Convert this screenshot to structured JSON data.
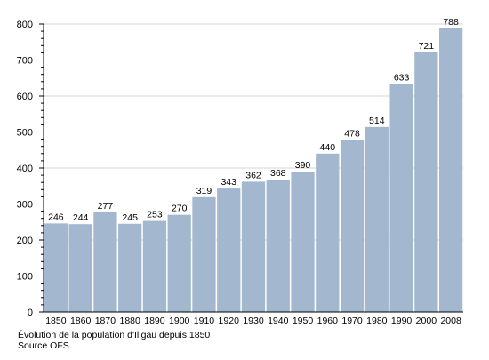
{
  "chart_data": {
    "type": "bar",
    "categories": [
      "1850",
      "1860",
      "1870",
      "1880",
      "1890",
      "1900",
      "1910",
      "1920",
      "1930",
      "1940",
      "1950",
      "1960",
      "1970",
      "1980",
      "1990",
      "2000",
      "2008"
    ],
    "values": [
      246,
      244,
      277,
      245,
      253,
      270,
      319,
      343,
      362,
      368,
      390,
      440,
      478,
      514,
      633,
      721,
      788
    ],
    "data_labels": [
      "246",
      "244",
      "277",
      "245",
      "253",
      "270",
      "319",
      "343",
      "362",
      "368",
      "390",
      "440",
      "478",
      "514",
      "633",
      "721",
      "788"
    ],
    "yticks": [
      "0",
      "100",
      "200",
      "300",
      "400",
      "500",
      "600",
      "700",
      "800"
    ],
    "ylim": [
      0,
      800
    ],
    "grid": true,
    "legend": "none",
    "colors": {
      "bar": "#a3b8cf",
      "grid": "#d4d4d4",
      "axis": "#000000"
    }
  },
  "caption": {
    "line1": "Évolution de la population d'Illgau depuis 1850",
    "line2": "Source OFS"
  }
}
